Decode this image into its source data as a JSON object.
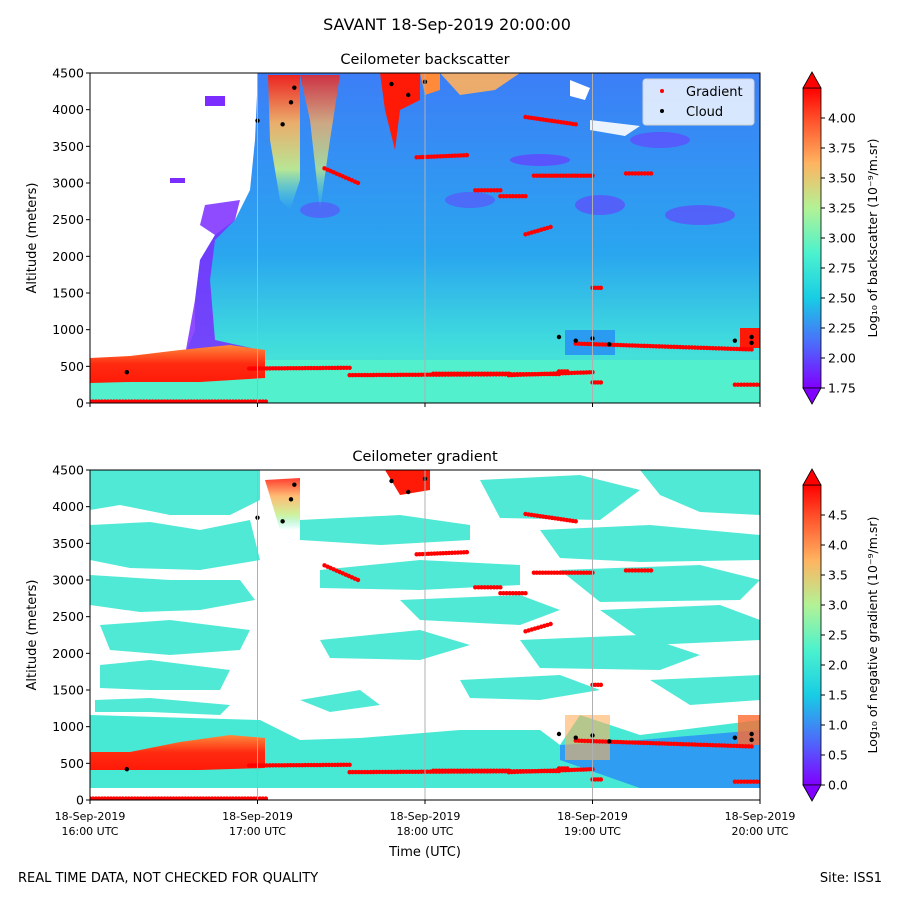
{
  "figure": {
    "title": "SAVANT 18-Sep-2019 20:00:00",
    "footer_left": "REAL TIME DATA, NOT CHECKED FOR QUALITY",
    "footer_right": "Site: ISS1",
    "xlabel": "Time (UTC)"
  },
  "chart_data": [
    {
      "type": "heatmap",
      "title": "Ceilometer backscatter",
      "ylabel": "Altitude (meters)",
      "xlabel": "",
      "x_range": [
        "18-Sep-2019 16:00 UTC",
        "18-Sep-2019 20:00 UTC"
      ],
      "x_ticks": [
        [
          "18-Sep-2019",
          "16:00 UTC"
        ],
        [
          "18-Sep-2019",
          "17:00 UTC"
        ],
        [
          "18-Sep-2019",
          "18:00 UTC"
        ],
        [
          "18-Sep-2019",
          "19:00 UTC"
        ],
        [
          "18-Sep-2019",
          "20:00 UTC"
        ]
      ],
      "x_tick_labels_shown": false,
      "ylim": [
        0,
        4500
      ],
      "y_ticks": [
        0,
        500,
        1000,
        1500,
        2000,
        2500,
        3000,
        3500,
        4000,
        4500
      ],
      "colorbar": {
        "label": "Log₁₀ of backscatter (10⁻⁹/m.sr)",
        "range": [
          1.75,
          4.25
        ],
        "ticks": [
          "1.75",
          "2.00",
          "2.25",
          "2.50",
          "2.75",
          "3.00",
          "3.25",
          "3.50",
          "3.75",
          "4.00"
        ],
        "colormap": "rainbow",
        "extend": "both"
      },
      "legend": {
        "placement": "top-right",
        "entries": [
          {
            "name": "Gradient",
            "color": "#ff0000"
          },
          {
            "name": "Cloud",
            "color": "#000000"
          }
        ]
      },
      "grid": "vertical lines at hourly ticks"
    },
    {
      "type": "heatmap",
      "title": "Ceilometer gradient",
      "ylabel": "Altitude (meters)",
      "xlabel": "Time (UTC)",
      "x_range": [
        "18-Sep-2019 16:00 UTC",
        "18-Sep-2019 20:00 UTC"
      ],
      "x_ticks": [
        [
          "18-Sep-2019",
          "16:00 UTC"
        ],
        [
          "18-Sep-2019",
          "17:00 UTC"
        ],
        [
          "18-Sep-2019",
          "18:00 UTC"
        ],
        [
          "18-Sep-2019",
          "19:00 UTC"
        ],
        [
          "18-Sep-2019",
          "20:00 UTC"
        ]
      ],
      "ylim": [
        0,
        4500
      ],
      "y_ticks": [
        0,
        500,
        1000,
        1500,
        2000,
        2500,
        3000,
        3500,
        4000,
        4500
      ],
      "colorbar": {
        "label": "Log₁₀ of negative gradient (10⁻⁹/m.sr)",
        "range": [
          0.0,
          5.0
        ],
        "ticks": [
          "0.0",
          "0.5",
          "1.0",
          "1.5",
          "2.0",
          "2.5",
          "3.0",
          "3.5",
          "4.0",
          "4.5"
        ],
        "colormap": "rainbow",
        "extend": "both"
      },
      "grid": "vertical lines at hourly ticks"
    }
  ],
  "overlays": {
    "gradient_segments_hours_altitude_m": [
      [
        16.0,
        17.05,
        20,
        20
      ],
      [
        16.95,
        17.55,
        470,
        480
      ],
      [
        17.55,
        18.8,
        380,
        395
      ],
      [
        18.8,
        18.85,
        430,
        430
      ],
      [
        18.05,
        18.5,
        400,
        400
      ],
      [
        18.5,
        19.0,
        380,
        420
      ],
      [
        18.9,
        19.95,
        810,
        730
      ],
      [
        17.4,
        17.6,
        3200,
        3000
      ],
      [
        17.95,
        18.25,
        3350,
        3380
      ],
      [
        18.3,
        18.45,
        2900,
        2900
      ],
      [
        18.45,
        18.6,
        2820,
        2820
      ],
      [
        18.6,
        18.75,
        2300,
        2400
      ],
      [
        18.65,
        19.0,
        3100,
        3100
      ],
      [
        18.6,
        18.9,
        3900,
        3800
      ],
      [
        19.2,
        19.35,
        3130,
        3130
      ],
      [
        19.85,
        20.0,
        250,
        250
      ],
      [
        19.0,
        19.05,
        280,
        280
      ],
      [
        19.0,
        19.05,
        1570,
        1570
      ]
    ],
    "cloud_points_hours_altitude_m": [
      [
        16.22,
        420
      ],
      [
        17.0,
        3850
      ],
      [
        17.15,
        3800
      ],
      [
        17.2,
        4100
      ],
      [
        17.22,
        4300
      ],
      [
        17.8,
        4350
      ],
      [
        17.9,
        4200
      ],
      [
        18.0,
        4380
      ],
      [
        18.8,
        900
      ],
      [
        18.9,
        850
      ],
      [
        19.0,
        880
      ],
      [
        19.1,
        800
      ],
      [
        19.95,
        900
      ],
      [
        19.85,
        850
      ],
      [
        19.95,
        820
      ]
    ]
  }
}
